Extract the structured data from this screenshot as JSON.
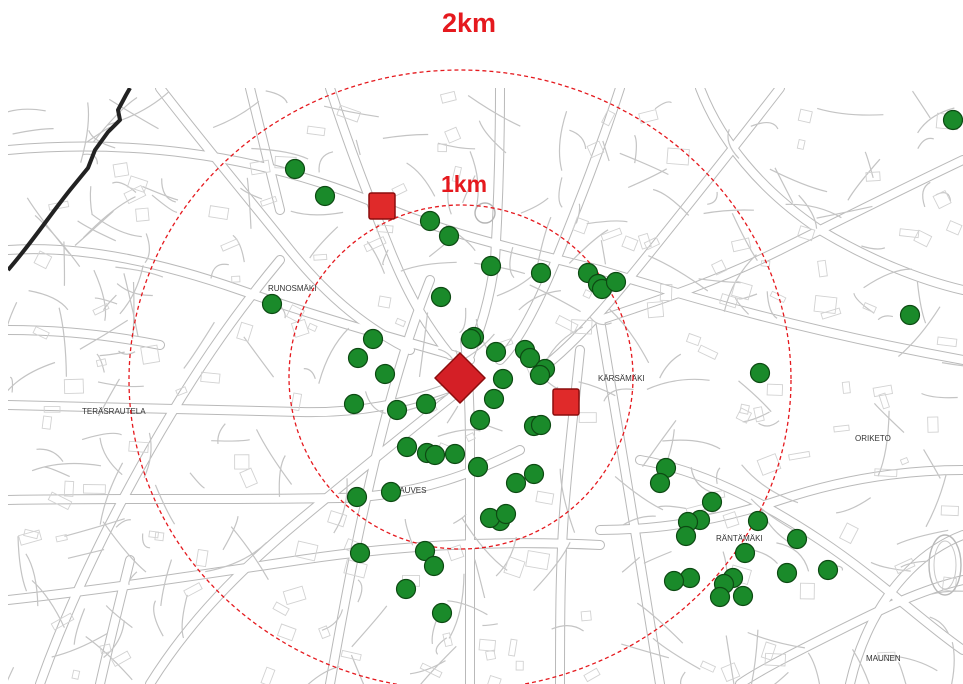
{
  "labels": {
    "radius_outer": "2km",
    "radius_inner": "1km"
  },
  "places": [
    {
      "name": "RUNOSMÄKI"
    },
    {
      "name": "KÄRSÄMÄKI"
    },
    {
      "name": "TERÄSRAUTELA"
    },
    {
      "name": "ORIKETO"
    },
    {
      "name": "KAUVES"
    },
    {
      "name": "RÄNTÄMÄKI"
    },
    {
      "name": "MAUNEN"
    }
  ],
  "colors": {
    "circle": "#e5191e",
    "dot_fill": "#1a8a2a",
    "dot_stroke": "#0d4a13",
    "square_fill": "#e02a2a",
    "square_stroke": "#8b0d0d",
    "diamond_fill": "#d41f26",
    "road_fill": "#ffffff",
    "road_casing": "#b9b9b9",
    "boundary": "#222222"
  },
  "markers": {
    "center": "diamond",
    "site": "square",
    "point": "circle"
  }
}
